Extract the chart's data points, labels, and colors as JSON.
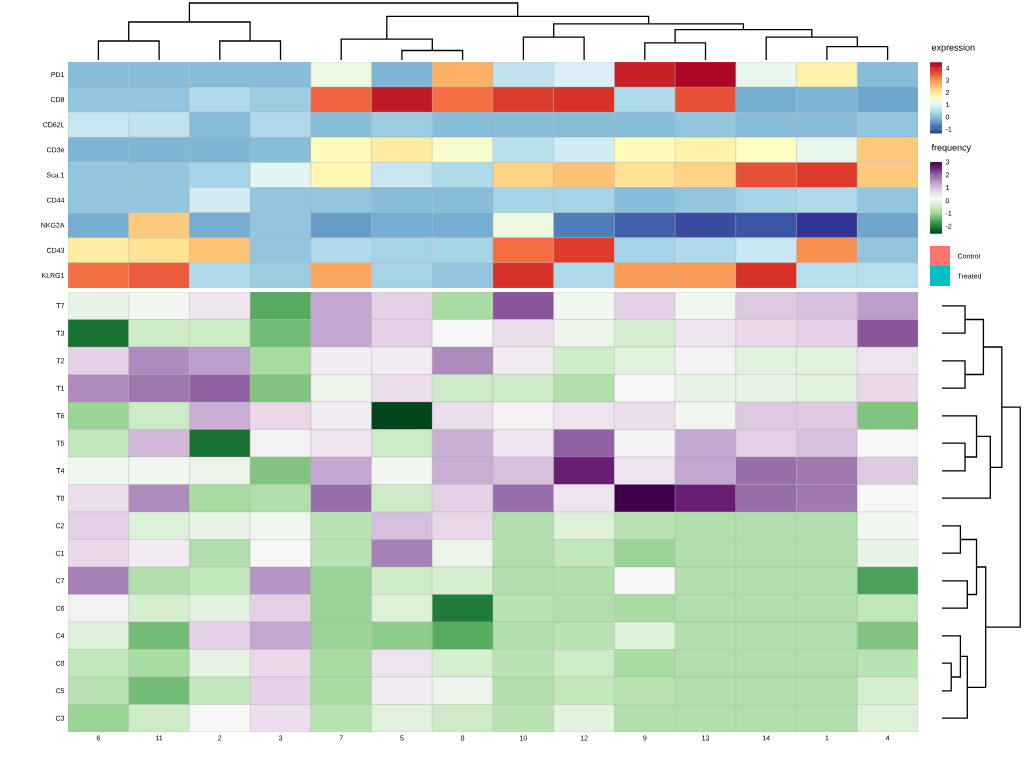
{
  "chart_data": [
    {
      "type": "heatmap",
      "clabel": "expression",
      "tick_labels": "y",
      "categories": [
        "6",
        "11",
        "2",
        "3",
        "7",
        "5",
        "8",
        "10",
        "12",
        "9",
        "13",
        "14",
        "1",
        "4"
      ],
      "y_categories": [
        "PD1",
        "CD8",
        "CD62L",
        "CD3e",
        "Sca.1",
        "CD44",
        "NKG2A",
        "CD43",
        "KLRG1"
      ],
      "cells": [
        [
          0,
          0,
          0,
          0,
          1.2,
          -0.1,
          2.7,
          0.6,
          0.9,
          4.1,
          4.4,
          1.1,
          1.8,
          0
        ],
        [
          0.1,
          0.1,
          0.4,
          0.2,
          3.4,
          4.2,
          3.3,
          3.8,
          3.9,
          0.4,
          3.6,
          -0.2,
          -0.1,
          -0.3
        ],
        [
          0.7,
          0.6,
          0,
          0.4,
          0,
          0.2,
          0,
          0,
          0,
          0,
          0.1,
          0,
          0,
          0.1
        ],
        [
          -0.1,
          -0.1,
          -0.1,
          0,
          1.6,
          1.9,
          1.4,
          0.5,
          0.8,
          1.6,
          1.8,
          1.5,
          1.1,
          2.4
        ],
        [
          0.1,
          0.1,
          0.3,
          1.0,
          1.7,
          0.7,
          0.4,
          2.3,
          2.5,
          2.1,
          2.3,
          3.6,
          3.8,
          2.4
        ],
        [
          0.1,
          0.1,
          0.8,
          0.1,
          0.1,
          0,
          0,
          0.3,
          0.3,
          0,
          0.1,
          0.3,
          0.4,
          0.1
        ],
        [
          -0.2,
          2.4,
          -0.2,
          0.1,
          -0.4,
          -0.2,
          -0.2,
          1.2,
          -0.7,
          -1.0,
          -1.2,
          -1.1,
          -1.4,
          -0.3
        ],
        [
          1.9,
          2.1,
          2.5,
          0.1,
          0.4,
          0.3,
          0.3,
          3.3,
          3.8,
          0.3,
          0.4,
          0.7,
          3.0,
          0.1
        ],
        [
          3.3,
          3.5,
          0.4,
          0.2,
          2.8,
          0.3,
          0.1,
          3.9,
          0.4,
          2.9,
          2.9,
          3.9,
          0.5,
          0.5
        ]
      ],
      "clim": [
        -1.4,
        4.5
      ],
      "cticks": [
        -1,
        0,
        1,
        2,
        3,
        4
      ]
    },
    {
      "type": "heatmap",
      "clabel": "frequency",
      "categories": [
        "6",
        "11",
        "2",
        "3",
        "7",
        "5",
        "8",
        "10",
        "12",
        "9",
        "13",
        "14",
        "1",
        "4"
      ],
      "y_categories": [
        "T7",
        "T3",
        "T2",
        "T1",
        "T6",
        "T5",
        "T4",
        "T8",
        "C2",
        "C1",
        "C7",
        "C6",
        "C4",
        "C8",
        "C5",
        "C3"
      ],
      "cells": [
        [
          -0.1,
          0.1,
          0.5,
          -1.5,
          1.3,
          0.8,
          -0.9,
          2.1,
          0.1,
          0.8,
          0.1,
          0.9,
          1.0,
          1.4
        ],
        [
          -2.1,
          -0.5,
          -0.5,
          -1.3,
          1.3,
          0.8,
          0.2,
          0.6,
          0.0,
          -0.4,
          0.5,
          0.7,
          0.8,
          2.1
        ],
        [
          0.8,
          1.6,
          1.4,
          -0.9,
          0.4,
          0.4,
          1.6,
          0.4,
          -0.5,
          -0.2,
          0.3,
          -0.2,
          -0.2,
          0.5
        ],
        [
          1.6,
          1.8,
          2.0,
          -1.2,
          0.0,
          0.6,
          -0.5,
          -0.5,
          -0.8,
          0.2,
          -0.1,
          -0.1,
          -0.2,
          0.7
        ],
        [
          -1.0,
          -0.5,
          1.2,
          0.7,
          0.4,
          -2.6,
          0.6,
          0.3,
          0.5,
          0.6,
          0.1,
          0.9,
          0.9,
          -1.2
        ],
        [
          -0.6,
          1.1,
          -2.1,
          0.3,
          0.5,
          -0.5,
          1.2,
          0.5,
          2.0,
          0.3,
          1.3,
          0.8,
          1.0,
          0.2
        ],
        [
          0.1,
          0.1,
          0.0,
          -1.2,
          1.3,
          0.1,
          1.2,
          1.0,
          2.6,
          0.5,
          1.3,
          1.9,
          1.8,
          0.9
        ],
        [
          0.6,
          1.6,
          -0.9,
          -0.8,
          1.9,
          -0.5,
          0.8,
          1.9,
          0.5,
          3.0,
          2.6,
          1.9,
          1.8,
          0.2
        ],
        [
          0.8,
          -0.3,
          -0.1,
          0.1,
          -0.7,
          1.0,
          0.7,
          -0.8,
          -0.3,
          -0.7,
          -0.8,
          -0.8,
          -0.8,
          0.1
        ],
        [
          0.7,
          0.4,
          -0.8,
          0.2,
          -0.7,
          1.7,
          0.0,
          -0.8,
          -0.6,
          -1.0,
          -0.8,
          -0.8,
          -0.8,
          -0.1
        ],
        [
          1.7,
          -0.8,
          -0.6,
          1.5,
          -1.0,
          -0.5,
          -0.4,
          -0.8,
          -0.8,
          0.2,
          -0.8,
          -0.8,
          -0.8,
          -1.6
        ],
        [
          0.3,
          -0.4,
          -0.2,
          0.8,
          -1.0,
          -0.3,
          -2.0,
          -0.7,
          -0.8,
          -0.9,
          -0.8,
          -0.8,
          -0.8,
          -0.6
        ],
        [
          -0.3,
          -1.3,
          0.8,
          1.3,
          -1.0,
          -1.1,
          -1.5,
          -0.8,
          -0.7,
          -0.3,
          -0.8,
          -0.8,
          -0.8,
          -1.2
        ],
        [
          -0.6,
          -0.9,
          -0.1,
          0.7,
          -0.9,
          0.5,
          -0.4,
          -0.7,
          -0.5,
          -0.9,
          -0.8,
          -0.8,
          -0.8,
          -0.7
        ],
        [
          -0.7,
          -1.3,
          -0.6,
          0.8,
          -0.9,
          0.4,
          0.0,
          -0.8,
          -0.6,
          -0.7,
          -0.8,
          -0.8,
          -0.8,
          -0.4
        ],
        [
          -1.0,
          -0.5,
          0.2,
          0.6,
          -0.7,
          -0.2,
          -0.5,
          -0.7,
          -0.2,
          -0.8,
          -0.8,
          -0.8,
          -0.8,
          -0.3
        ]
      ],
      "clim": [
        -2.6,
        3
      ],
      "cticks": [
        -2,
        -1,
        0,
        1,
        2,
        3
      ]
    },
    {
      "type": "other",
      "categories": [
        "Control",
        "Treated"
      ],
      "colors": [
        "#f8766d",
        "#00bfc4"
      ]
    }
  ]
}
